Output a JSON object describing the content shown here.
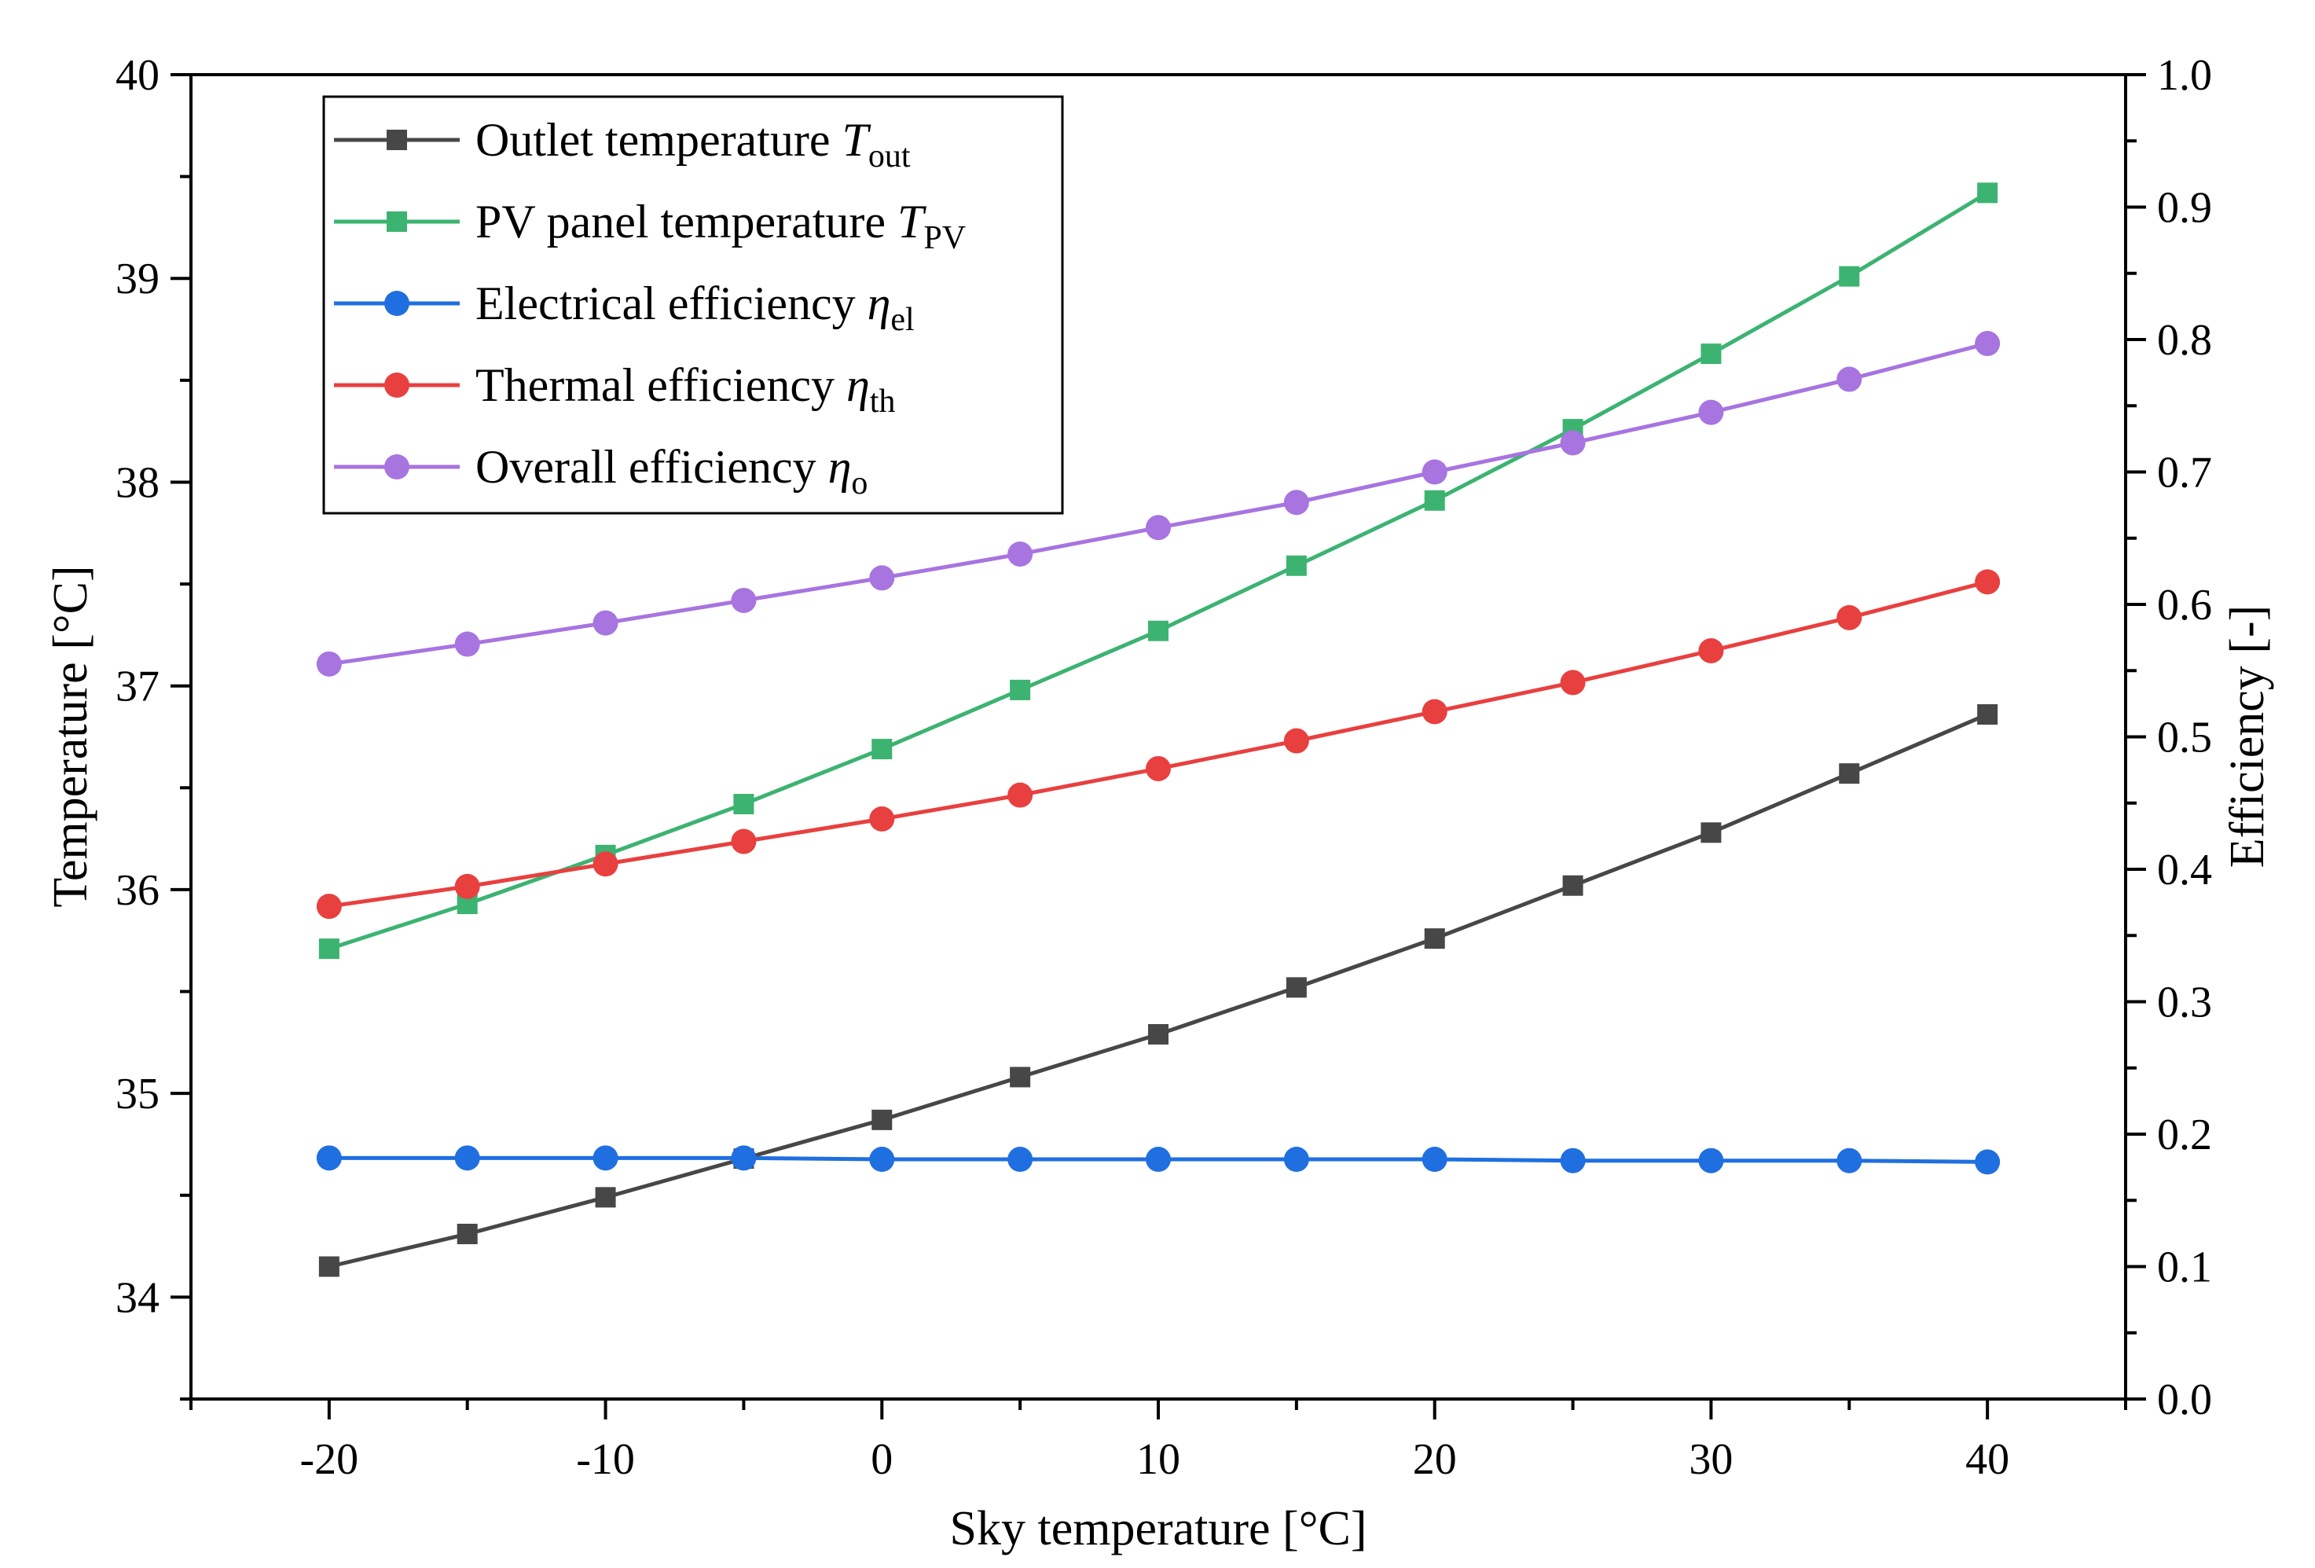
{
  "chart_data": {
    "type": "line",
    "title": "",
    "xlabel": "Sky temperature [°C]",
    "ylabel": "Temperature [°C]",
    "y2label": "Efficiency [-]",
    "xlim": [
      -25,
      45
    ],
    "ylim": [
      33.5,
      40
    ],
    "y2lim": [
      0,
      1
    ],
    "xticks": [
      -20,
      -10,
      0,
      10,
      20,
      30,
      40
    ],
    "xtick_labels": [
      "-20",
      "-10",
      "0",
      "10",
      "20",
      "30",
      "40"
    ],
    "yticks": [
      34,
      35,
      36,
      37,
      38,
      39,
      40
    ],
    "ytick_labels": [
      "34",
      "35",
      "36",
      "37",
      "38",
      "39",
      "40"
    ],
    "y2ticks": [
      0.0,
      0.1,
      0.2,
      0.3,
      0.4,
      0.5,
      0.6,
      0.7,
      0.8,
      0.9,
      1.0
    ],
    "y2tick_labels": [
      "0.0",
      "0.1",
      "0.2",
      "0.3",
      "0.4",
      "0.5",
      "0.6",
      "0.7",
      "0.8",
      "0.9",
      "1.0"
    ],
    "grid": false,
    "legend_position": "top-left",
    "x": [
      -20,
      -15,
      -10,
      -5,
      0,
      5,
      10,
      15,
      20,
      25,
      30,
      35,
      40
    ],
    "series": [
      {
        "name": "Outlet temperature",
        "symbol": "T",
        "subscript": "out",
        "axis": "left",
        "marker": "square",
        "color": "#474747",
        "values": [
          34.15,
          34.31,
          34.49,
          34.68,
          34.87,
          35.08,
          35.29,
          35.52,
          35.76,
          36.02,
          36.28,
          36.57,
          36.86
        ]
      },
      {
        "name": "PV panel temperature",
        "symbol": "T",
        "subscript": "PV",
        "axis": "left",
        "marker": "square",
        "color": "#3cb371",
        "values": [
          35.71,
          35.93,
          36.17,
          36.42,
          36.69,
          36.98,
          37.27,
          37.59,
          37.91,
          38.26,
          38.63,
          39.01,
          39.42
        ]
      },
      {
        "name": "Electrical efficiency",
        "symbol": "η",
        "subscript": "el",
        "axis": "right",
        "marker": "circle",
        "color": "#1f6fe0",
        "values": [
          0.182,
          0.182,
          0.182,
          0.182,
          0.181,
          0.181,
          0.181,
          0.181,
          0.181,
          0.18,
          0.18,
          0.18,
          0.179
        ]
      },
      {
        "name": "Thermal efficiency",
        "symbol": "η",
        "subscript": "th",
        "axis": "right",
        "marker": "circle",
        "color": "#e8403f",
        "values": [
          0.372,
          0.387,
          0.404,
          0.421,
          0.438,
          0.456,
          0.476,
          0.497,
          0.519,
          0.541,
          0.565,
          0.59,
          0.617
        ]
      },
      {
        "name": "Overall efficiency",
        "symbol": "η",
        "subscript": "o",
        "axis": "right",
        "marker": "circle",
        "color": "#a774e0",
        "values": [
          0.555,
          0.57,
          0.586,
          0.603,
          0.62,
          0.638,
          0.658,
          0.677,
          0.7,
          0.722,
          0.745,
          0.77,
          0.797
        ]
      }
    ]
  }
}
